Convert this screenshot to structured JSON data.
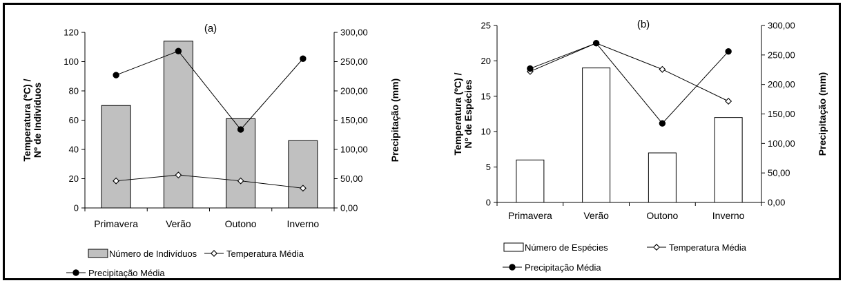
{
  "chart_data": [
    {
      "type": "bar",
      "panel_label": "(a)",
      "categories": [
        "Primavera",
        "Verão",
        "Outono",
        "Inverno"
      ],
      "series": [
        {
          "name": "Número de Indivíduos",
          "type": "bar",
          "axis": "left",
          "values": [
            70,
            114,
            61,
            46
          ],
          "color": "#c0c0c0"
        },
        {
          "name": "Temperatura Média",
          "type": "line",
          "axis": "left",
          "marker": "open-diamond",
          "values": [
            18.5,
            22.5,
            18.5,
            13.5
          ]
        },
        {
          "name": "Precipitação Média",
          "type": "line",
          "axis": "right",
          "marker": "filled-circle",
          "values": [
            227,
            268,
            134,
            255
          ]
        }
      ],
      "ylabel_left": [
        "Temperatura (ºC) /",
        "Nº de Indivíduos"
      ],
      "ylabel_right": "Precipitação (mm)",
      "ylim_left": [
        0,
        120
      ],
      "yticks_left": [
        "0",
        "20",
        "40",
        "60",
        "80",
        "100",
        "120"
      ],
      "ylim_right": [
        0,
        300
      ],
      "yticks_right": [
        "0,00",
        "50,00",
        "100,00",
        "150,00",
        "200,00",
        "250,00",
        "300,00"
      ],
      "grid": false,
      "legend_position": "bottom"
    },
    {
      "type": "bar",
      "panel_label": "(b)",
      "categories": [
        "Primavera",
        "Verão",
        "Outono",
        "Inverno"
      ],
      "series": [
        {
          "name": "Número de Espécies",
          "type": "bar",
          "axis": "left",
          "values": [
            6,
            19,
            7,
            12
          ],
          "color": "#ffffff"
        },
        {
          "name": "Temperatura Média",
          "type": "line",
          "axis": "left",
          "marker": "open-diamond",
          "values": [
            18.5,
            22.5,
            18.8,
            14.3
          ]
        },
        {
          "name": "Precipitação Média",
          "type": "line",
          "axis": "right",
          "marker": "filled-circle",
          "values": [
            227,
            270,
            134,
            256
          ]
        }
      ],
      "ylabel_left": [
        "Temperatura (ºC) /",
        "Nº de Espécies"
      ],
      "ylabel_right": "Precipitação (mm)",
      "ylim_left": [
        0,
        25
      ],
      "yticks_left": [
        "0",
        "5",
        "10",
        "15",
        "20",
        "25"
      ],
      "ylim_right": [
        0,
        300
      ],
      "yticks_right": [
        "0,00",
        "50,00",
        "100,00",
        "150,00",
        "200,00",
        "250,00",
        "300,00"
      ],
      "grid": false,
      "legend_position": "bottom"
    }
  ]
}
